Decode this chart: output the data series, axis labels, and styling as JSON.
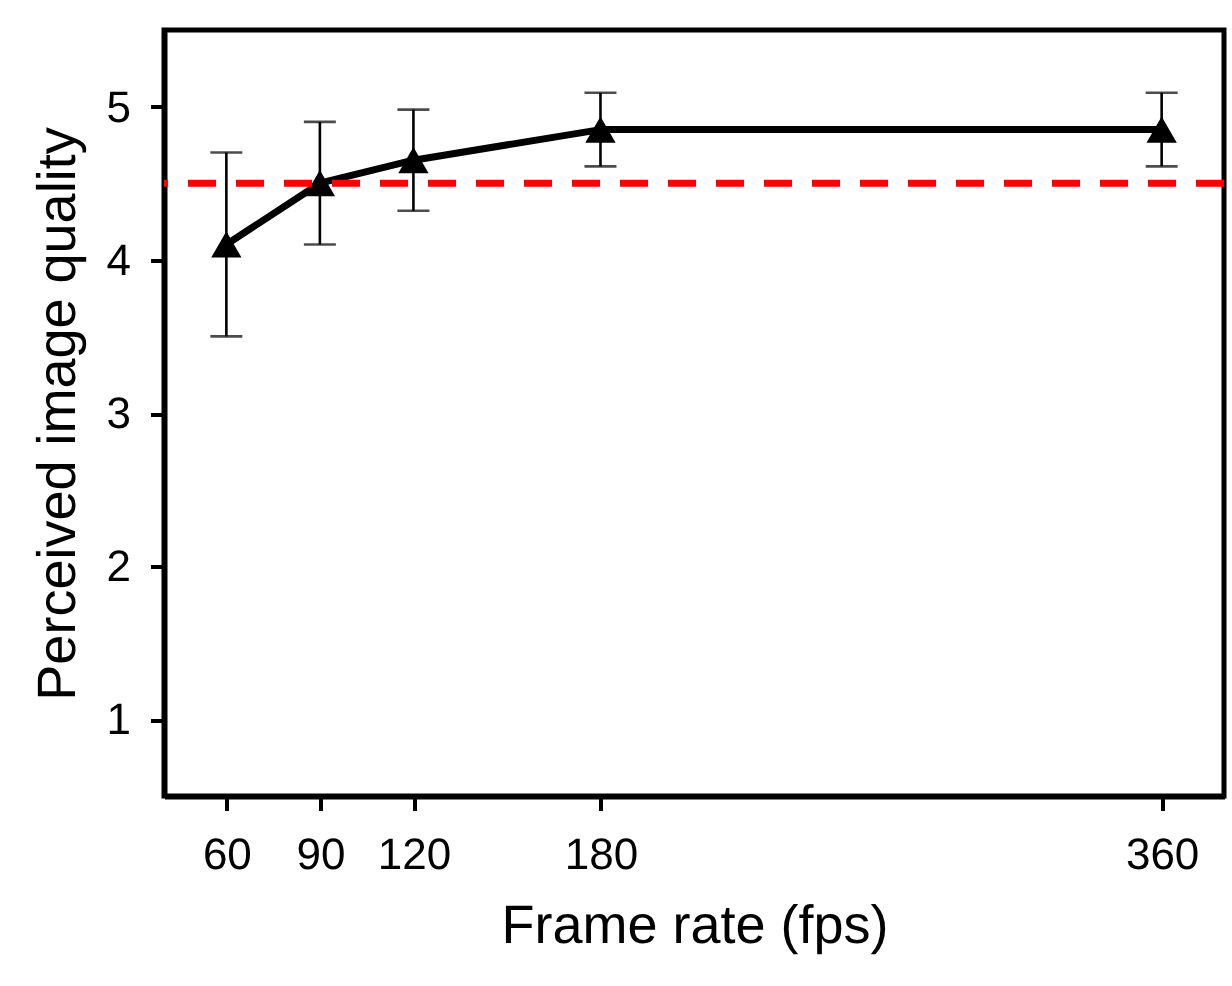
{
  "chart_data": {
    "type": "line",
    "xlabel": "Frame rate (fps)",
    "ylabel": "Perceived image quality",
    "x": [
      60,
      90,
      120,
      180,
      360
    ],
    "series": [
      {
        "color": "#000000",
        "values": [
          4.1,
          4.5,
          4.65,
          4.85,
          4.85
        ],
        "errors": [
          0.6,
          0.4,
          0.33,
          0.24,
          0.24
        ]
      }
    ],
    "xlim": [
      40,
      380
    ],
    "xticks": [
      60,
      90,
      120,
      180,
      360
    ],
    "ylim": [
      0.5,
      5.5
    ],
    "yticks": [
      1,
      2,
      3,
      4,
      5
    ],
    "ref_lines": [
      {
        "axis": "y",
        "value": 4.5,
        "color": "#ff0000",
        "line_style": "dashed"
      }
    ],
    "marker": "triangle",
    "line_style": "solid",
    "grid": false
  }
}
